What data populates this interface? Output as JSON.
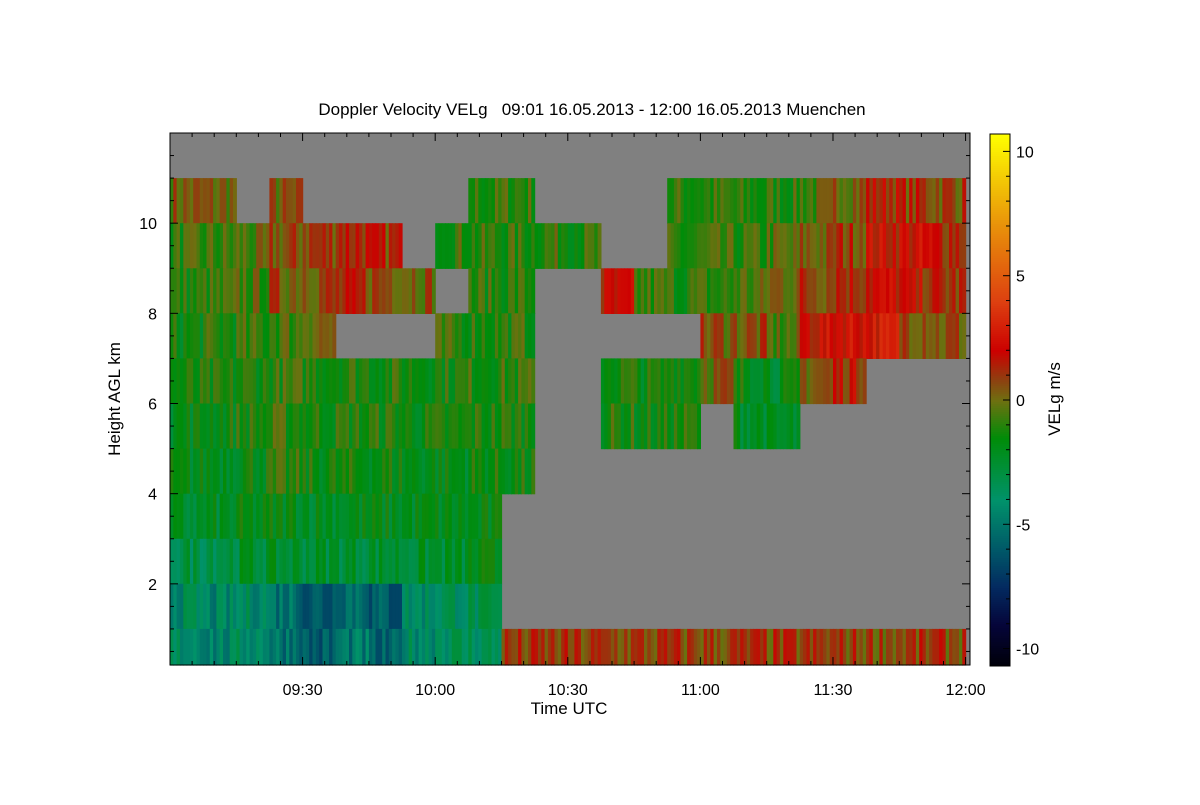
{
  "chart_data": {
    "type": "heatmap",
    "title": "Doppler Velocity VELg   09:01 16.05.2013 - 12:00 16.05.2013 Muenchen",
    "xlabel": "Time UTC",
    "ylabel": "Height AGL km",
    "colorbar_label": "VELg m/s",
    "xlim_minutes_after_0900": [
      0,
      181
    ],
    "ylim": [
      0.2,
      12
    ],
    "clim": [
      -10.7,
      10.7
    ],
    "x_ticks": [
      {
        "value": 30,
        "label": "09:30"
      },
      {
        "value": 60,
        "label": "10:00"
      },
      {
        "value": 90,
        "label": "10:30"
      },
      {
        "value": 120,
        "label": "11:00"
      },
      {
        "value": 150,
        "label": "11:30"
      },
      {
        "value": 180,
        "label": "12:00"
      }
    ],
    "y_ticks": [
      {
        "value": 2,
        "label": "2"
      },
      {
        "value": 4,
        "label": "4"
      },
      {
        "value": 6,
        "label": "6"
      },
      {
        "value": 8,
        "label": "8"
      },
      {
        "value": 10,
        "label": "10"
      }
    ],
    "colorbar_ticks": [
      {
        "value": 10,
        "label": "10"
      },
      {
        "value": 5,
        "label": "5"
      },
      {
        "value": 0,
        "label": "0"
      },
      {
        "value": -5,
        "label": "-5"
      },
      {
        "value": -10,
        "label": "-10"
      }
    ],
    "colormap": [
      {
        "v": -10.7,
        "c": "#000008"
      },
      {
        "v": -9,
        "c": "#05053a"
      },
      {
        "v": -7.5,
        "c": "#032a60"
      },
      {
        "v": -6,
        "c": "#005868"
      },
      {
        "v": -4,
        "c": "#00926a"
      },
      {
        "v": -1.5,
        "c": "#008c08"
      },
      {
        "v": 0,
        "c": "#6e7010"
      },
      {
        "v": 0.8,
        "c": "#8c4210"
      },
      {
        "v": 2,
        "c": "#cc0000"
      },
      {
        "v": 4,
        "c": "#dd4010"
      },
      {
        "v": 7,
        "c": "#e8900a"
      },
      {
        "v": 10.7,
        "c": "#ffff00"
      }
    ],
    "no_data_color": "#808080",
    "time_bin_minutes": 7.5,
    "height_bins_km": [
      [
        11,
        12
      ],
      [
        10,
        11
      ],
      [
        9,
        10
      ],
      [
        8,
        9
      ],
      [
        7,
        8
      ],
      [
        6,
        7
      ],
      [
        5,
        6
      ],
      [
        4,
        5
      ],
      [
        3,
        4
      ],
      [
        2,
        3
      ],
      [
        1,
        2
      ],
      [
        0.2,
        1
      ]
    ],
    "values_mps": [
      [
        null,
        null,
        null,
        null,
        null,
        null,
        null,
        null,
        null,
        null,
        null,
        null,
        null,
        null,
        null,
        null,
        null,
        null,
        null,
        null,
        null,
        null,
        null,
        null
      ],
      [
        0.3,
        0.2,
        null,
        0.2,
        null,
        null,
        null,
        null,
        null,
        -1,
        -0.8,
        null,
        null,
        null,
        null,
        -1,
        -1,
        -1.2,
        -1,
        -0.5,
        0.5,
        1.5,
        1,
        0.8
      ],
      [
        -1,
        -0.8,
        -0.5,
        0.5,
        1,
        1.5,
        1,
        null,
        -0.8,
        -1,
        -1,
        -0.8,
        -1,
        null,
        null,
        -1.2,
        -1,
        -1,
        -0.5,
        0.3,
        1,
        2,
        2,
        1.5
      ],
      [
        -1.2,
        -1,
        -0.5,
        0.5,
        0.8,
        1,
        0.8,
        0.5,
        null,
        -1,
        -1,
        null,
        null,
        1.5,
        -0.8,
        -1,
        -1,
        -0.5,
        0.3,
        1,
        1.5,
        2,
        1.5,
        1
      ],
      [
        -1.5,
        -1.2,
        -1,
        -0.5,
        0.3,
        null,
        null,
        null,
        -1,
        -1,
        -1,
        null,
        null,
        null,
        null,
        null,
        0.5,
        0.5,
        -0.5,
        2,
        2.5,
        2.5,
        1,
        0.5
      ],
      [
        -1.5,
        -1.5,
        -1.2,
        -1,
        -1,
        -1,
        -1.2,
        -1.2,
        -1.2,
        -1,
        -1,
        null,
        null,
        -1.2,
        -1.5,
        -1,
        0.3,
        -1.5,
        -2,
        0.5,
        1.5,
        null,
        null,
        null
      ],
      [
        -1.8,
        -1.5,
        -1.2,
        -1,
        -1.2,
        -1.2,
        -1.2,
        -1.5,
        -1.5,
        -1.2,
        -1.2,
        null,
        null,
        -1.2,
        -1.5,
        -1.2,
        null,
        -2,
        -2.5,
        null,
        null,
        null,
        null,
        null
      ],
      [
        -2,
        -1.8,
        -1.5,
        -1.2,
        -1.5,
        -1.5,
        -1.5,
        -1.8,
        -1.8,
        -1.5,
        -1.5,
        null,
        null,
        null,
        null,
        null,
        null,
        null,
        null,
        null,
        null,
        null,
        null,
        null
      ],
      [
        -2.5,
        -2.3,
        -2,
        -1.8,
        -2,
        -2,
        -2,
        -2,
        -2,
        -2,
        null,
        null,
        null,
        null,
        null,
        null,
        null,
        null,
        null,
        null,
        null,
        null,
        null,
        null
      ],
      [
        -3,
        -2.8,
        -2.5,
        -2.5,
        -2.5,
        -2.5,
        -2.5,
        -2.5,
        -2.5,
        -2,
        null,
        null,
        null,
        null,
        null,
        null,
        null,
        null,
        null,
        null,
        null,
        null,
        null,
        null
      ],
      [
        -4,
        -4.5,
        -4,
        -5,
        -6,
        -5,
        -6,
        -4,
        -3.5,
        -3.5,
        null,
        null,
        null,
        null,
        null,
        null,
        null,
        null,
        null,
        null,
        null,
        null,
        null,
        null
      ],
      [
        -4,
        -4.5,
        -4,
        -5,
        -6,
        -5,
        -6,
        -4,
        -3.5,
        -3.5,
        0.8,
        0.8,
        0.8,
        0.8,
        0.8,
        0.8,
        0.8,
        0.8,
        0.8,
        0.8,
        0.8,
        0.8,
        0.8,
        0.8
      ]
    ]
  }
}
